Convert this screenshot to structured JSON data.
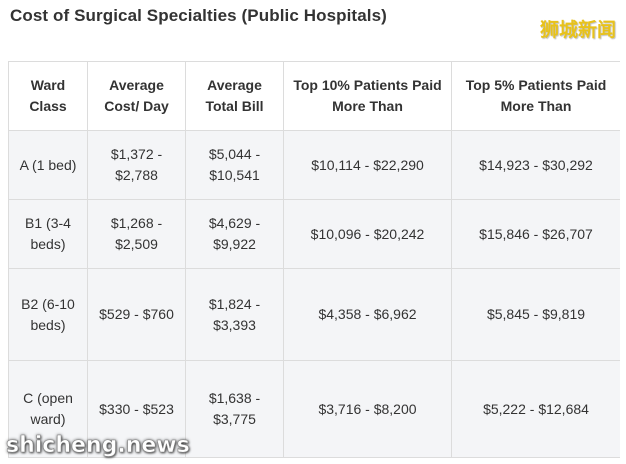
{
  "title": "Cost of Surgical Specialties (Public Hospitals)",
  "watermark_top": "狮城新闻",
  "watermark_bottom": "shicheng.news",
  "table": {
    "headers": [
      "Ward Class",
      "Average Cost/ Day",
      "Average Total Bill",
      "Top 10% Patients Paid More Than",
      "Top 5% Patients Paid More Than"
    ],
    "rows": [
      [
        "A (1 bed)",
        "$1,372 - $2,788",
        "$5,044 - $10,541",
        "$10,114 - $22,290",
        "$14,923 - $30,292"
      ],
      [
        "B1 (3-4 beds)",
        "$1,268 - $2,509",
        "$4,629 - $9,922",
        "$10,096 - $20,242",
        "$15,846 - $26,707"
      ],
      [
        "B2 (6-10 beds)",
        "$529 - $760",
        "$1,824 - $3,393",
        "$4,358 - $6,962",
        "$5,845 - $9,819"
      ],
      [
        "C (open ward)",
        "$330 - $523",
        "$1,638 - $3,775",
        "$3,716 - $8,200",
        "$5,222 - $12,684"
      ]
    ]
  }
}
